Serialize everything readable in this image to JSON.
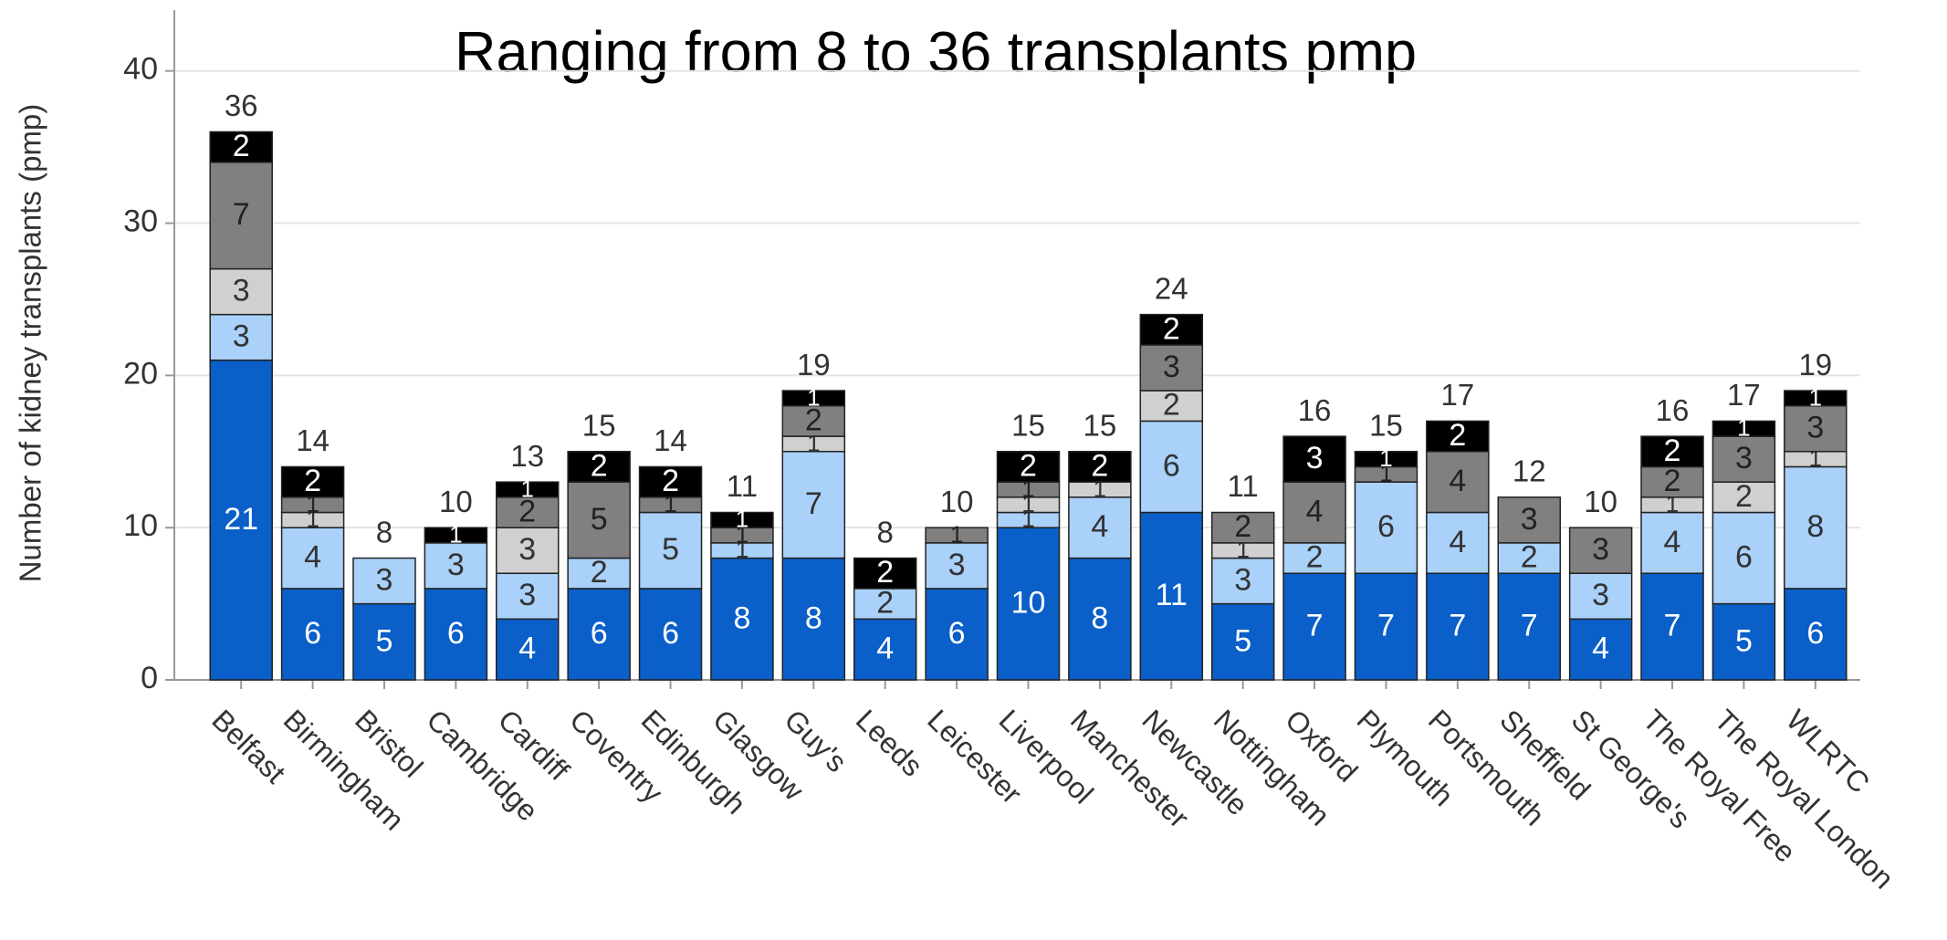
{
  "chart_data": {
    "type": "stacked_bar",
    "title": "Ranging from 8 to 36 transplants pmp",
    "y_label": "Number of kidney transplants (pmp)",
    "categories": [
      "Belfast",
      "Birmingham",
      "Bristol",
      "Cambridge",
      "Cardiff",
      "Coventry",
      "Edinburgh",
      "Glasgow",
      "Guy's",
      "Leeds",
      "Leicester",
      "Liverpool",
      "Manchester",
      "Newcastle",
      "Nottingham",
      "Oxford",
      "Plymouth",
      "Portsmouth",
      "Sheffield",
      "St George's",
      "The Royal Free",
      "The Royal London",
      "WLRTC"
    ],
    "series": [
      {
        "color": "#0a5fc8",
        "values": [
          21,
          6,
          5,
          6,
          4,
          6,
          6,
          8,
          8,
          4,
          6,
          10,
          8,
          11,
          5,
          7,
          7,
          7,
          7,
          4,
          7,
          5,
          6
        ]
      },
      {
        "color": "#a9d1fa",
        "values": [
          3,
          4,
          3,
          3,
          3,
          2,
          5,
          1,
          7,
          2,
          3,
          1,
          4,
          6,
          3,
          2,
          6,
          4,
          2,
          3,
          4,
          6,
          8
        ]
      },
      {
        "color": "#d0d0d0",
        "values": [
          3,
          1,
          0,
          0,
          3,
          0,
          0,
          0,
          1,
          0,
          0,
          1,
          1,
          2,
          1,
          0,
          0,
          0,
          0,
          0,
          1,
          2,
          1
        ]
      },
      {
        "color": "#808080",
        "values": [
          7,
          1,
          0,
          0,
          2,
          5,
          1,
          1,
          2,
          0,
          1,
          1,
          0,
          3,
          2,
          4,
          1,
          4,
          3,
          3,
          2,
          3,
          3
        ]
      },
      {
        "color": "#000000",
        "values": [
          2,
          2,
          0,
          1,
          1,
          2,
          2,
          1,
          1,
          2,
          0,
          2,
          2,
          2,
          0,
          3,
          1,
          2,
          0,
          0,
          2,
          1,
          1
        ]
      }
    ],
    "totals": [
      36,
      14,
      8,
      10,
      13,
      15,
      14,
      11,
      19,
      8,
      10,
      15,
      15,
      24,
      11,
      16,
      15,
      17,
      12,
      10,
      16,
      17,
      19
    ],
    "ylim": [
      0,
      44
    ],
    "yticks": [
      0,
      10,
      20,
      30,
      40
    ],
    "grid": true
  }
}
